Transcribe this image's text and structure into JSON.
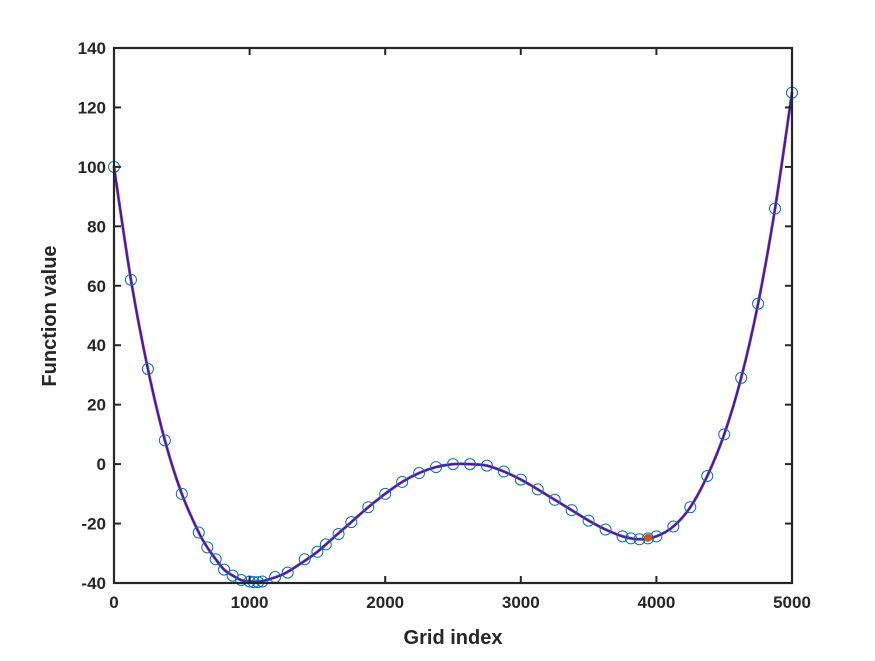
{
  "chart_data": {
    "type": "line",
    "title": "",
    "xlabel": "Grid index",
    "ylabel": "Function value",
    "xlim": [
      0,
      5000
    ],
    "ylim": [
      -40,
      140
    ],
    "xticks": [
      0,
      1000,
      2000,
      3000,
      4000,
      5000
    ],
    "yticks": [
      -40,
      -20,
      0,
      20,
      40,
      60,
      80,
      100,
      120,
      140
    ],
    "xtick_labels": [
      "0",
      "1000",
      "2000",
      "3000",
      "4000",
      "5000"
    ],
    "ytick_labels": [
      "-40",
      "-20",
      "0",
      "20",
      "40",
      "60",
      "80",
      "100",
      "120",
      "140"
    ],
    "grid": false,
    "legend": "none",
    "series": [
      {
        "style": "line",
        "color": "#e8553a",
        "x": [
          0,
          125,
          250,
          375,
          500,
          625,
          688,
          750,
          812,
          875,
          938,
          1000,
          1062,
          1125,
          1250,
          1375,
          1500,
          1625,
          1750,
          1875,
          2000,
          2125,
          2250,
          2375,
          2500,
          2625,
          2750,
          2875,
          3000,
          3125,
          3250,
          3375,
          3500,
          3625,
          3750,
          3875,
          4000,
          4125,
          4250,
          4375,
          4500,
          4625,
          4750,
          4875,
          5000
        ],
        "y": [
          100,
          62,
          32,
          8,
          -10,
          -23,
          -28,
          -32,
          -35.5,
          -37.5,
          -39,
          -39.5,
          -39.5,
          -39,
          -37,
          -33.5,
          -29.5,
          -24.5,
          -19.5,
          -14.5,
          -10,
          -6,
          -3,
          -1,
          0,
          0,
          -0.5,
          -2.5,
          -5.2,
          -8.5,
          -12,
          -15.5,
          -19,
          -22,
          -24.3,
          -25.3,
          -24.3,
          -21,
          -14.5,
          -4,
          10,
          29,
          54,
          86,
          125
        ]
      },
      {
        "style": "line",
        "color": "#2a1fcf",
        "x": [
          0,
          125,
          250,
          375,
          500,
          625,
          688,
          750,
          812,
          875,
          938,
          1000,
          1062,
          1125,
          1250,
          1375,
          1500,
          1625,
          1750,
          1875,
          2000,
          2125,
          2250,
          2375,
          2500,
          2625,
          2750,
          2875,
          3000,
          3125,
          3250,
          3375,
          3500,
          3625,
          3750,
          3875,
          4000,
          4125,
          4250,
          4375,
          4500,
          4625,
          4750,
          4875,
          5000
        ],
        "y": [
          100,
          62,
          32,
          8,
          -10,
          -23,
          -28,
          -32,
          -35.5,
          -37.5,
          -39,
          -39.5,
          -39.5,
          -39,
          -37,
          -33.5,
          -29.5,
          -24.5,
          -19.5,
          -14.5,
          -10,
          -6,
          -3,
          -1,
          0,
          0,
          -0.5,
          -2.5,
          -5.2,
          -8.5,
          -12,
          -15.5,
          -19,
          -22,
          -24.3,
          -25.3,
          -24.3,
          -21,
          -14.5,
          -4,
          10,
          29,
          54,
          86,
          125
        ]
      },
      {
        "style": "markers",
        "marker": "open-circle",
        "color": "#0072bd",
        "x": [
          0,
          125,
          250,
          375,
          500,
          625,
          688,
          750,
          812,
          875,
          938,
          1000,
          1031,
          1062,
          1094,
          1188,
          1281,
          1406,
          1500,
          1562,
          1656,
          1750,
          1875,
          2000,
          2125,
          2250,
          2375,
          2500,
          2625,
          2750,
          2875,
          3000,
          3125,
          3250,
          3375,
          3500,
          3625,
          3750,
          3812,
          3875,
          3938,
          4000,
          4125,
          4250,
          4375,
          4500,
          4625,
          4750,
          4875,
          5000
        ],
        "y": [
          100,
          62,
          32,
          8,
          -10,
          -23,
          -28,
          -32,
          -35.5,
          -37.5,
          -39,
          -39.5,
          -39.7,
          -39.7,
          -39.5,
          -38,
          -36.5,
          -32,
          -29.5,
          -27,
          -23.5,
          -19.5,
          -14.5,
          -10,
          -6,
          -3,
          -1,
          0,
          0,
          -0.5,
          -2.5,
          -5.2,
          -8.5,
          -12,
          -15.5,
          -19,
          -22,
          -24.3,
          -25,
          -25.3,
          -25,
          -24.3,
          -21,
          -14.5,
          -4,
          10,
          29,
          54,
          86,
          125
        ]
      },
      {
        "style": "point",
        "marker": "filled-circle",
        "color": "#d95319",
        "x": [
          3938
        ],
        "y": [
          -24.8
        ]
      }
    ]
  }
}
